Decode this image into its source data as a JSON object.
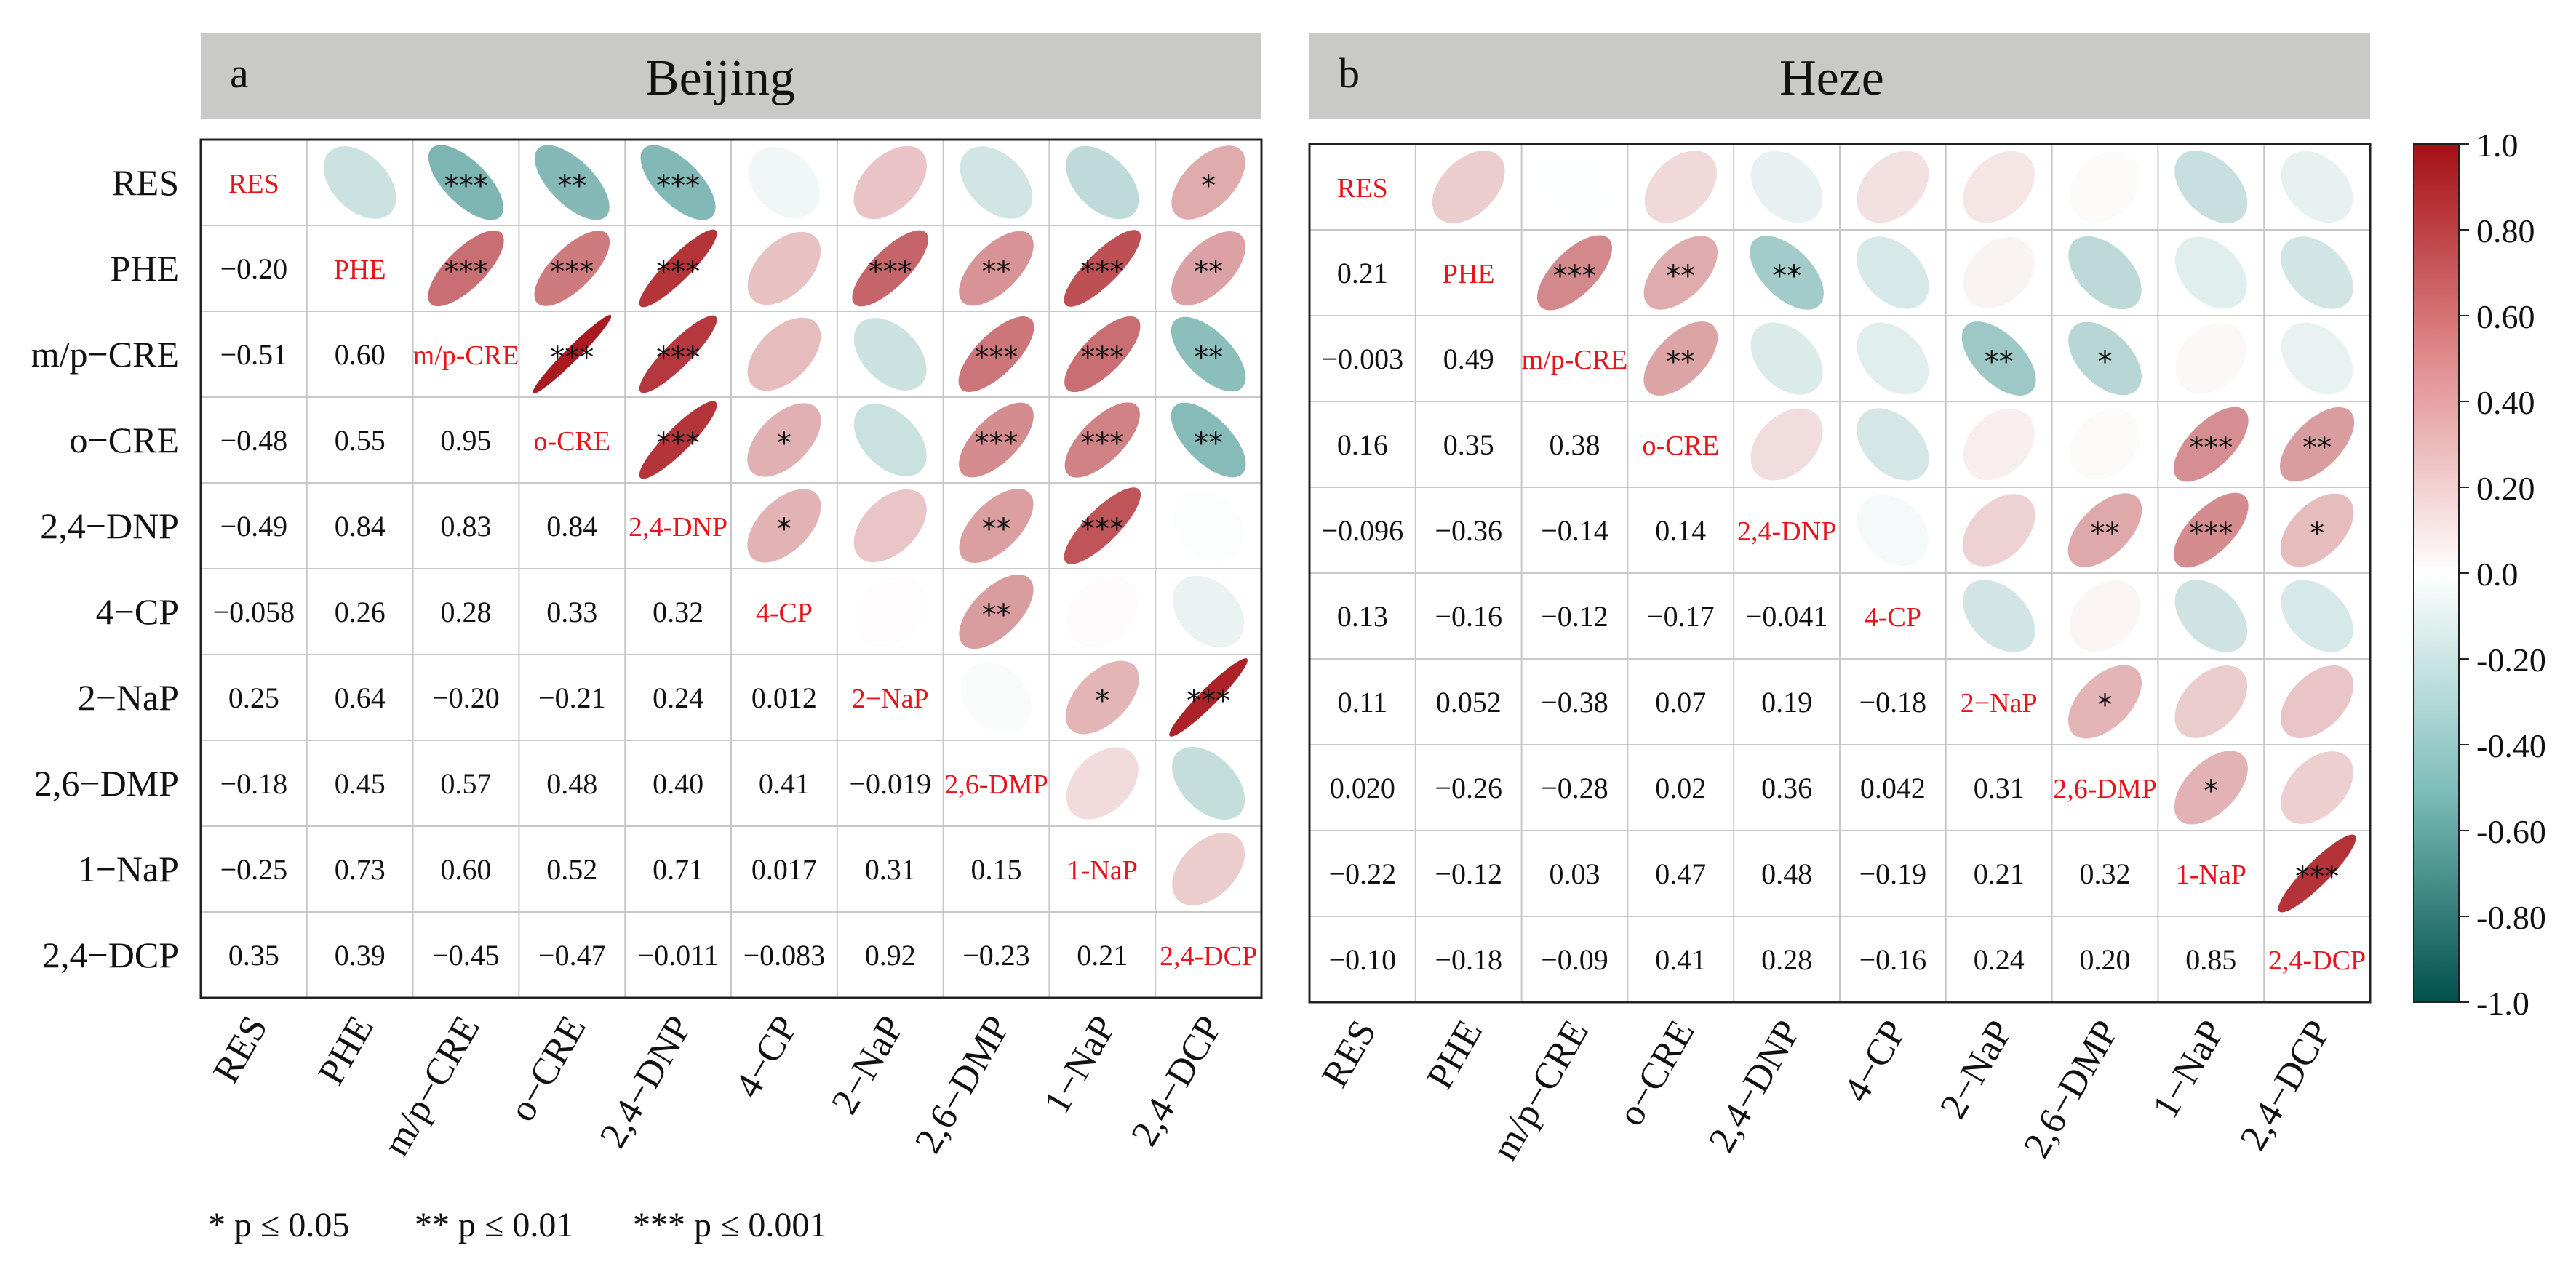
{
  "variables": [
    "RES",
    "PHE",
    "m/p−CRE",
    "o−CRE",
    "2,4−DNP",
    "4−CP",
    "2−NaP",
    "2,6−DMP",
    "1−NaP",
    "2,4−DCP"
  ],
  "diag_labels": [
    "RES",
    "PHE",
    "m/p-CRE",
    "o-CRE",
    "2,4-DNP",
    "4-CP",
    "2−NaP",
    "2,6-DMP",
    "1-NaP",
    "2,4-DCP"
  ],
  "legend_text": {
    "p05": "*  p ≤ 0.05",
    "p01": "**  p ≤ 0.01",
    "p001": "***  p ≤ 0.001"
  },
  "colorbar_labels": [
    "1.0",
    "0.80",
    "0.60",
    "0.40",
    "0.20",
    "0.0",
    "-0.20",
    "-0.40",
    "-0.60",
    "-0.80",
    "-1.0"
  ],
  "colors": {
    "positive": "#a50f15",
    "negative": "#00736e",
    "neutral": "#ffffff",
    "header_bg": "#c9cac8",
    "diag_text": "#e8131b"
  },
  "chart_data": [
    {
      "type": "heatmap",
      "panel": "a",
      "title": "Beijing",
      "values": [
        [
          1,
          -0.2,
          -0.51,
          -0.48,
          -0.49,
          -0.058,
          0.25,
          -0.18,
          -0.25,
          0.35
        ],
        [
          -0.2,
          1,
          0.6,
          0.55,
          0.84,
          0.26,
          0.64,
          0.45,
          0.73,
          0.39
        ],
        [
          -0.51,
          0.6,
          1,
          0.95,
          0.83,
          0.28,
          -0.2,
          0.57,
          0.6,
          -0.45
        ],
        [
          -0.48,
          0.55,
          0.95,
          1,
          0.84,
          0.33,
          -0.21,
          0.48,
          0.52,
          -0.47
        ],
        [
          -0.49,
          0.84,
          0.83,
          0.84,
          1,
          0.32,
          0.24,
          0.4,
          0.71,
          -0.011
        ],
        [
          -0.058,
          0.26,
          0.28,
          0.33,
          0.32,
          1,
          0.012,
          0.41,
          0.017,
          -0.083
        ],
        [
          0.25,
          0.64,
          -0.2,
          -0.21,
          0.24,
          0.012,
          1,
          -0.019,
          0.31,
          0.92
        ],
        [
          -0.18,
          0.45,
          0.57,
          0.48,
          0.4,
          0.41,
          -0.019,
          1,
          0.15,
          -0.23
        ],
        [
          -0.25,
          0.73,
          0.6,
          0.52,
          0.71,
          0.017,
          0.31,
          0.15,
          1,
          0.21
        ],
        [
          0.35,
          0.39,
          -0.45,
          -0.47,
          -0.011,
          -0.083,
          0.92,
          -0.23,
          0.21,
          1
        ]
      ],
      "value_labels": [
        [
          "",
          "",
          "",
          "",
          "",
          "",
          "",
          "",
          "",
          ""
        ],
        [
          "−0.20",
          "",
          "",
          "",
          "",
          "",
          "",
          "",
          "",
          ""
        ],
        [
          "−0.51",
          "0.60",
          "",
          "",
          "",
          "",
          "",
          "",
          "",
          ""
        ],
        [
          "−0.48",
          "0.55",
          "0.95",
          "",
          "",
          "",
          "",
          "",
          "",
          ""
        ],
        [
          "−0.49",
          "0.84",
          "0.83",
          "0.84",
          "",
          "",
          "",
          "",
          "",
          ""
        ],
        [
          "−0.058",
          "0.26",
          "0.28",
          "0.33",
          "0.32",
          "",
          "",
          "",
          "",
          ""
        ],
        [
          "0.25",
          "0.64",
          "−0.20",
          "−0.21",
          "0.24",
          "0.012",
          "",
          "",
          "",
          ""
        ],
        [
          "−0.18",
          "0.45",
          "0.57",
          "0.48",
          "0.40",
          "0.41",
          "−0.019",
          "",
          "",
          ""
        ],
        [
          "−0.25",
          "0.73",
          "0.60",
          "0.52",
          "0.71",
          "0.017",
          "0.31",
          "0.15",
          "",
          ""
        ],
        [
          "0.35",
          "0.39",
          "−0.45",
          "−0.47",
          "−0.011",
          "−0.083",
          "0.92",
          "−0.23",
          "0.21",
          ""
        ]
      ],
      "significance": [
        [
          "",
          "",
          "***",
          "**",
          "***",
          "",
          "",
          "",
          "",
          "*"
        ],
        [
          "",
          "",
          "***",
          "***",
          "***",
          "",
          "***",
          "**",
          "***",
          "**"
        ],
        [
          "",
          "",
          "",
          "***",
          "***",
          "",
          "",
          "***",
          "***",
          "**"
        ],
        [
          "",
          "",
          "",
          "",
          "***",
          "*",
          "",
          "***",
          "***",
          "**"
        ],
        [
          "",
          "",
          "",
          "",
          "",
          "*",
          "",
          "**",
          "***",
          ""
        ],
        [
          "",
          "",
          "",
          "",
          "",
          "",
          "",
          "**",
          "",
          ""
        ],
        [
          "",
          "",
          "",
          "",
          "",
          "",
          "",
          "",
          "*",
          "***"
        ],
        [
          "",
          "",
          "",
          "",
          "",
          "",
          "",
          "",
          "",
          ""
        ],
        [
          "",
          "",
          "",
          "",
          "",
          "",
          "",
          "",
          "",
          ""
        ],
        [
          "",
          "",
          "",
          "",
          "",
          "",
          "",
          "",
          "",
          ""
        ]
      ]
    },
    {
      "type": "heatmap",
      "panel": "b",
      "title": "Heze",
      "values": [
        [
          1,
          0.21,
          -0.003,
          0.16,
          -0.096,
          0.13,
          0.11,
          0.02,
          -0.22,
          -0.1
        ],
        [
          0.21,
          1,
          0.49,
          0.35,
          -0.36,
          -0.16,
          0.052,
          -0.26,
          -0.12,
          -0.18
        ],
        [
          -0.003,
          0.49,
          1,
          0.38,
          -0.14,
          -0.12,
          -0.38,
          -0.28,
          0.03,
          -0.09
        ],
        [
          0.16,
          0.35,
          0.38,
          1,
          0.14,
          -0.17,
          0.07,
          0.02,
          0.47,
          0.41
        ],
        [
          -0.096,
          -0.36,
          -0.14,
          0.14,
          1,
          -0.041,
          0.19,
          0.36,
          0.48,
          0.28
        ],
        [
          0.13,
          -0.16,
          -0.12,
          -0.17,
          -0.041,
          1,
          -0.18,
          0.042,
          -0.19,
          -0.16
        ],
        [
          0.11,
          0.052,
          -0.38,
          0.07,
          0.19,
          -0.18,
          1,
          0.31,
          0.21,
          0.24
        ],
        [
          0.02,
          -0.26,
          -0.28,
          0.02,
          0.36,
          0.042,
          0.31,
          1,
          0.32,
          0.2
        ],
        [
          -0.22,
          -0.12,
          0.03,
          0.47,
          0.48,
          -0.19,
          0.21,
          0.32,
          1,
          0.85
        ],
        [
          -0.1,
          -0.18,
          -0.09,
          0.41,
          0.28,
          -0.16,
          0.24,
          0.2,
          0.85,
          1
        ]
      ],
      "value_labels": [
        [
          "",
          "",
          "",
          "",
          "",
          "",
          "",
          "",
          "",
          ""
        ],
        [
          "0.21",
          "",
          "",
          "",
          "",
          "",
          "",
          "",
          "",
          ""
        ],
        [
          "−0.003",
          "0.49",
          "",
          "",
          "",
          "",
          "",
          "",
          "",
          ""
        ],
        [
          "0.16",
          "0.35",
          "0.38",
          "",
          "",
          "",
          "",
          "",
          "",
          ""
        ],
        [
          "−0.096",
          "−0.36",
          "−0.14",
          "0.14",
          "",
          "",
          "",
          "",
          "",
          ""
        ],
        [
          "0.13",
          "−0.16",
          "−0.12",
          "−0.17",
          "−0.041",
          "",
          "",
          "",
          "",
          ""
        ],
        [
          "0.11",
          "0.052",
          "−0.38",
          "0.07",
          "0.19",
          "−0.18",
          "",
          "",
          "",
          ""
        ],
        [
          "0.020",
          "−0.26",
          "−0.28",
          "0.02",
          "0.36",
          "0.042",
          "0.31",
          "",
          "",
          ""
        ],
        [
          "−0.22",
          "−0.12",
          "0.03",
          "0.47",
          "0.48",
          "−0.19",
          "0.21",
          "0.32",
          "",
          ""
        ],
        [
          "−0.10",
          "−0.18",
          "−0.09",
          "0.41",
          "0.28",
          "−0.16",
          "0.24",
          "0.20",
          "0.85",
          ""
        ]
      ],
      "significance": [
        [
          "",
          "",
          "",
          "",
          "",
          "",
          "",
          "",
          "",
          ""
        ],
        [
          "",
          "",
          "***",
          "**",
          "**",
          "",
          "",
          "",
          "",
          ""
        ],
        [
          "",
          "",
          "",
          "**",
          "",
          "",
          "**",
          "*",
          "",
          ""
        ],
        [
          "",
          "",
          "",
          "",
          "",
          "",
          "",
          "",
          "***",
          "**"
        ],
        [
          "",
          "",
          "",
          "",
          "",
          "",
          "",
          "**",
          "***",
          "*"
        ],
        [
          "",
          "",
          "",
          "",
          "",
          "",
          "",
          "",
          "",
          ""
        ],
        [
          "",
          "",
          "",
          "",
          "",
          "",
          "",
          "*",
          "",
          ""
        ],
        [
          "",
          "",
          "",
          "",
          "",
          "",
          "",
          "",
          "*",
          ""
        ],
        [
          "",
          "",
          "",
          "",
          "",
          "",
          "",
          "",
          "",
          "***"
        ],
        [
          "",
          "",
          "",
          "",
          "",
          "",
          "",
          "",
          "",
          ""
        ]
      ]
    }
  ]
}
